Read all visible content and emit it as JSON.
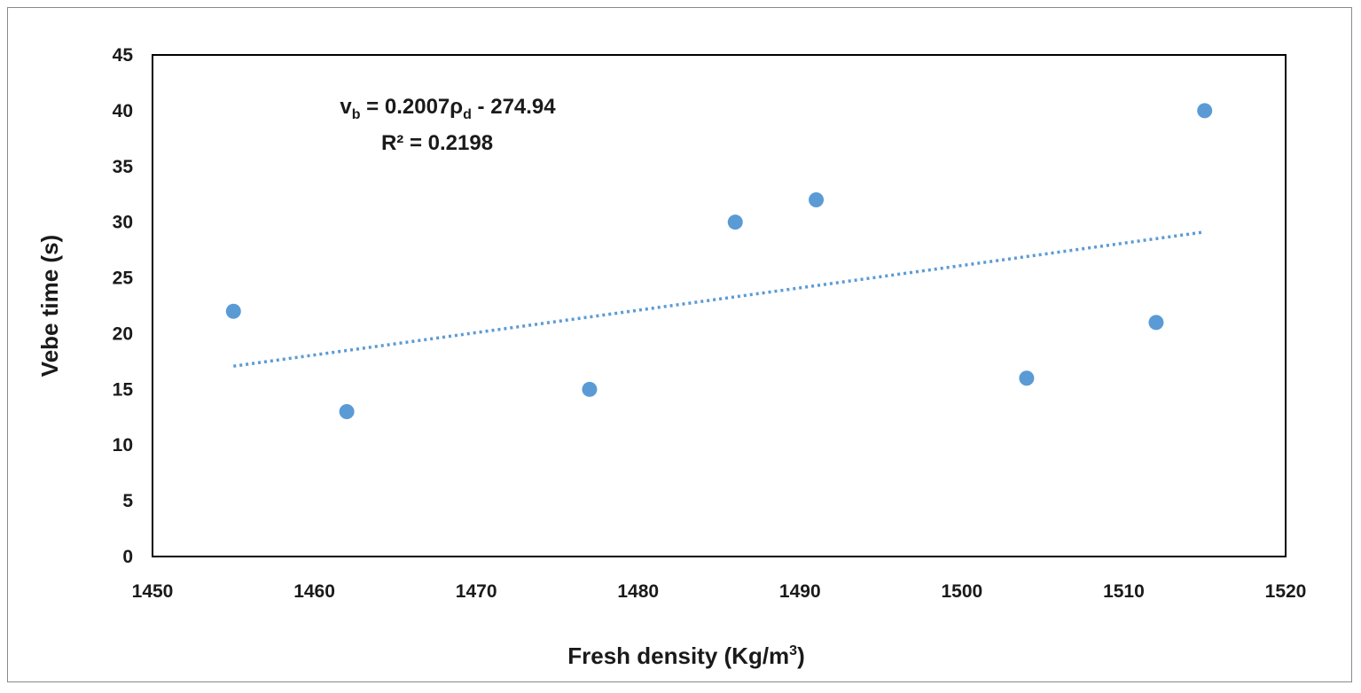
{
  "chart_data": {
    "type": "scatter",
    "xlabel_main": "Fresh density (Kg/m",
    "xlabel_sup": "3",
    "xlabel_end": ")",
    "ylabel": "Vebe time (s)",
    "xlim": [
      1450,
      1520
    ],
    "ylim": [
      0,
      45
    ],
    "x_ticks": [
      "1450",
      "1460",
      "1470",
      "1480",
      "1490",
      "1500",
      "1510",
      "1520"
    ],
    "y_ticks": [
      "0",
      "5",
      "10",
      "15",
      "20",
      "25",
      "30",
      "35",
      "40",
      "45"
    ],
    "series": [
      {
        "points": [
          {
            "x": 1455,
            "y": 22
          },
          {
            "x": 1462,
            "y": 13
          },
          {
            "x": 1477,
            "y": 15
          },
          {
            "x": 1486,
            "y": 30
          },
          {
            "x": 1491,
            "y": 32
          },
          {
            "x": 1504,
            "y": 16
          },
          {
            "x": 1512,
            "y": 21
          },
          {
            "x": 1515,
            "y": 40
          }
        ],
        "color": "#5b9bd5"
      }
    ],
    "trendline": {
      "type": "linear",
      "slope": 0.2007,
      "intercept": -274.94,
      "x_range": [
        1455,
        1515
      ],
      "style": "dotted",
      "color": "#5b9bd5"
    },
    "equation": {
      "v": "v",
      "v_sub": "b",
      "mid": " = 0.2007ρ",
      "rho_sub": "d",
      "end": " - 274.94"
    },
    "r_squared": "R² = 0.2198",
    "grid": false,
    "legend": "none"
  }
}
